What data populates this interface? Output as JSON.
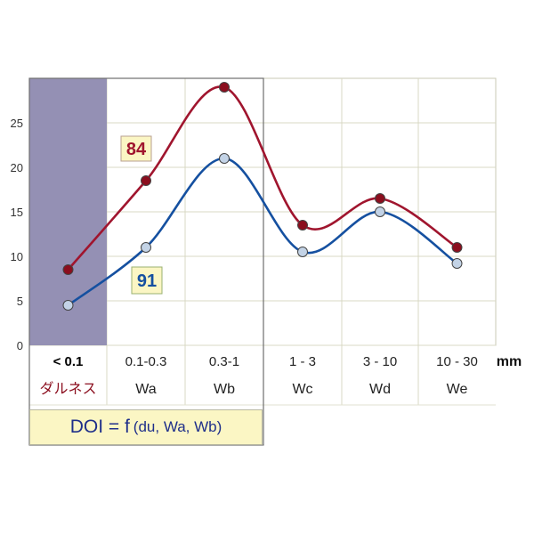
{
  "chart_data": {
    "type": "line",
    "categories": [
      "< 0.1",
      "0.1-0.3",
      "0.3-1",
      "1 - 3",
      "3 - 10",
      "10 - 30"
    ],
    "category_sublabels": [
      "ダルネス",
      "Wa",
      "Wb",
      "Wc",
      "Wd",
      "We"
    ],
    "unit": "mm",
    "y_ticks": [
      "0",
      "5",
      "10",
      "15",
      "20",
      "25"
    ],
    "ylim": [
      0,
      30
    ],
    "grid": true,
    "series": [
      {
        "name": "84",
        "color": "#a0152e",
        "marker_fill": "#8b0e1e",
        "values": [
          8.5,
          18.5,
          29,
          13.5,
          16.5,
          11
        ]
      },
      {
        "name": "91",
        "color": "#1550a0",
        "marker_fill": "#c3d3e6",
        "values": [
          4.5,
          11,
          21,
          10.5,
          15,
          9.2
        ]
      }
    ],
    "highlight_region": {
      "categories": [
        "< 0.1"
      ],
      "color": "#9490b4"
    },
    "box_region": {
      "categories": [
        "< 0.1",
        "0.1-0.3",
        "0.3-1"
      ]
    },
    "formula": {
      "main": "DOI = f",
      "args": "(du, Wa, Wb)"
    }
  }
}
